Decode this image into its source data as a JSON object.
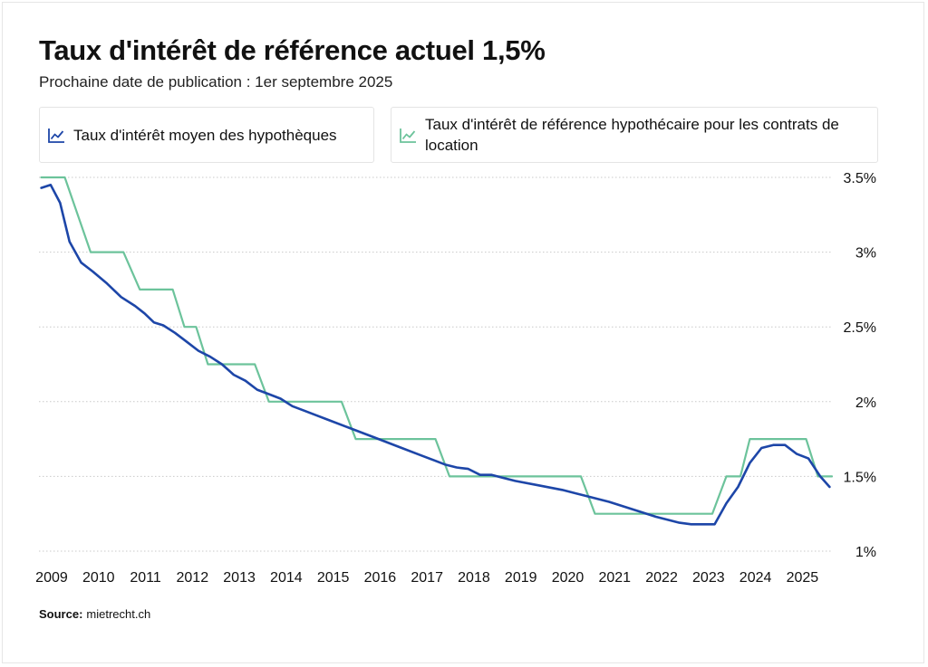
{
  "title": "Taux d'intérêt de référence actuel 1,5%",
  "subtitle": "Prochaine date de publication : 1er septembre 2025",
  "source": {
    "label": "Source:",
    "value": "mietrecht.ch"
  },
  "colors": {
    "series_avg": "#1d46a8",
    "series_ref": "#6cc39b",
    "grid": "#c9c9c9",
    "text": "#111111"
  },
  "chart_data": {
    "type": "line",
    "xlim": [
      2008.85,
      2025.75
    ],
    "ylim": [
      1.0,
      3.5
    ],
    "x_ticks": [
      2009,
      2010,
      2011,
      2012,
      2013,
      2014,
      2015,
      2016,
      2017,
      2018,
      2019,
      2020,
      2021,
      2022,
      2023,
      2024,
      2025
    ],
    "y_ticks": [
      {
        "value": 3.5,
        "label": "3.5%"
      },
      {
        "value": 3.0,
        "label": "3%"
      },
      {
        "value": 2.5,
        "label": "2.5%"
      },
      {
        "value": 2.0,
        "label": "2%"
      },
      {
        "value": 1.5,
        "label": "1.5%"
      },
      {
        "value": 1.0,
        "label": "1%"
      }
    ],
    "grid": "horizontal dotted",
    "legend_position": "top",
    "series": [
      {
        "name": "Taux d'intérêt moyen des hypothèques",
        "icon": "line-chart-icon",
        "shape": "linear",
        "points": [
          [
            2008.9,
            3.43
          ],
          [
            2009.1,
            3.45
          ],
          [
            2009.3,
            3.33
          ],
          [
            2009.5,
            3.07
          ],
          [
            2009.75,
            2.93
          ],
          [
            2010.0,
            2.87
          ],
          [
            2010.3,
            2.79
          ],
          [
            2010.6,
            2.7
          ],
          [
            2010.9,
            2.64
          ],
          [
            2011.1,
            2.59
          ],
          [
            2011.3,
            2.53
          ],
          [
            2011.5,
            2.51
          ],
          [
            2011.75,
            2.46
          ],
          [
            2012.0,
            2.4
          ],
          [
            2012.25,
            2.34
          ],
          [
            2012.5,
            2.3
          ],
          [
            2012.75,
            2.25
          ],
          [
            2013.0,
            2.18
          ],
          [
            2013.25,
            2.14
          ],
          [
            2013.5,
            2.08
          ],
          [
            2013.75,
            2.05
          ],
          [
            2014.0,
            2.02
          ],
          [
            2014.25,
            1.97
          ],
          [
            2014.5,
            1.94
          ],
          [
            2014.75,
            1.91
          ],
          [
            2015.0,
            1.88
          ],
          [
            2015.5,
            1.82
          ],
          [
            2016.0,
            1.76
          ],
          [
            2016.5,
            1.7
          ],
          [
            2017.0,
            1.64
          ],
          [
            2017.25,
            1.61
          ],
          [
            2017.5,
            1.58
          ],
          [
            2017.75,
            1.56
          ],
          [
            2018.0,
            1.55
          ],
          [
            2018.25,
            1.51
          ],
          [
            2018.5,
            1.51
          ],
          [
            2018.75,
            1.49
          ],
          [
            2019.0,
            1.47
          ],
          [
            2019.5,
            1.44
          ],
          [
            2020.0,
            1.41
          ],
          [
            2020.5,
            1.37
          ],
          [
            2021.0,
            1.33
          ],
          [
            2021.5,
            1.28
          ],
          [
            2022.0,
            1.23
          ],
          [
            2022.5,
            1.19
          ],
          [
            2022.75,
            1.18
          ],
          [
            2023.25,
            1.18
          ],
          [
            2023.5,
            1.32
          ],
          [
            2023.75,
            1.43
          ],
          [
            2024.0,
            1.59
          ],
          [
            2024.25,
            1.69
          ],
          [
            2024.5,
            1.71
          ],
          [
            2024.75,
            1.71
          ],
          [
            2025.0,
            1.65
          ],
          [
            2025.25,
            1.62
          ],
          [
            2025.5,
            1.5
          ],
          [
            2025.7,
            1.43
          ]
        ]
      },
      {
        "name": "Taux d'intérêt de référence hypothécaire pour les contrats de location",
        "icon": "line-chart-icon",
        "shape": "step",
        "points": [
          [
            2008.9,
            3.5
          ],
          [
            2009.4,
            3.5
          ],
          [
            2009.95,
            3.0
          ],
          [
            2010.65,
            3.0
          ],
          [
            2011.0,
            2.75
          ],
          [
            2011.7,
            2.75
          ],
          [
            2011.95,
            2.5
          ],
          [
            2012.2,
            2.5
          ],
          [
            2012.45,
            2.25
          ],
          [
            2013.45,
            2.25
          ],
          [
            2013.75,
            2.0
          ],
          [
            2015.3,
            2.0
          ],
          [
            2015.6,
            1.75
          ],
          [
            2017.3,
            1.75
          ],
          [
            2017.6,
            1.5
          ],
          [
            2020.4,
            1.5
          ],
          [
            2020.7,
            1.25
          ],
          [
            2023.2,
            1.25
          ],
          [
            2023.5,
            1.5
          ],
          [
            2023.8,
            1.5
          ],
          [
            2024.0,
            1.75
          ],
          [
            2025.2,
            1.75
          ],
          [
            2025.45,
            1.5
          ],
          [
            2025.75,
            1.5
          ]
        ]
      }
    ]
  }
}
